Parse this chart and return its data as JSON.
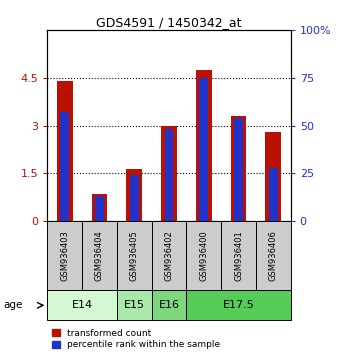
{
  "title": "GDS4591 / 1450342_at",
  "samples": [
    "GSM936403",
    "GSM936404",
    "GSM936405",
    "GSM936402",
    "GSM936400",
    "GSM936401",
    "GSM936406"
  ],
  "transformed_counts": [
    4.4,
    0.85,
    1.65,
    3.0,
    4.75,
    3.3,
    2.8
  ],
  "percentile_ranks": [
    57,
    13,
    24,
    48,
    75,
    54,
    28
  ],
  "age_groups": [
    {
      "label": "E14",
      "start": 0,
      "end": 2,
      "color": "#d4f7d4"
    },
    {
      "label": "E15",
      "start": 2,
      "end": 3,
      "color": "#a8e8a8"
    },
    {
      "label": "E16",
      "start": 3,
      "end": 4,
      "color": "#7dd87d"
    },
    {
      "label": "E17.5",
      "start": 4,
      "end": 7,
      "color": "#55cc55"
    }
  ],
  "ylim_left": [
    0,
    6
  ],
  "ylim_right": [
    0,
    100
  ],
  "yticks_left": [
    0,
    1.5,
    3.0,
    4.5
  ],
  "ytick_labels_left": [
    "0",
    "1.5",
    "3",
    "4.5"
  ],
  "yticks_right": [
    0,
    25,
    50,
    75,
    100
  ],
  "ytick_labels_right": [
    "0",
    "25",
    "50",
    "75",
    "100%"
  ],
  "bar_color_red": "#bb1100",
  "bar_color_blue": "#2233cc",
  "bar_width": 0.45,
  "blue_bar_width": 0.25,
  "bg_color": "#cccccc",
  "legend_red": "transformed count",
  "legend_blue": "percentile rank within the sample"
}
